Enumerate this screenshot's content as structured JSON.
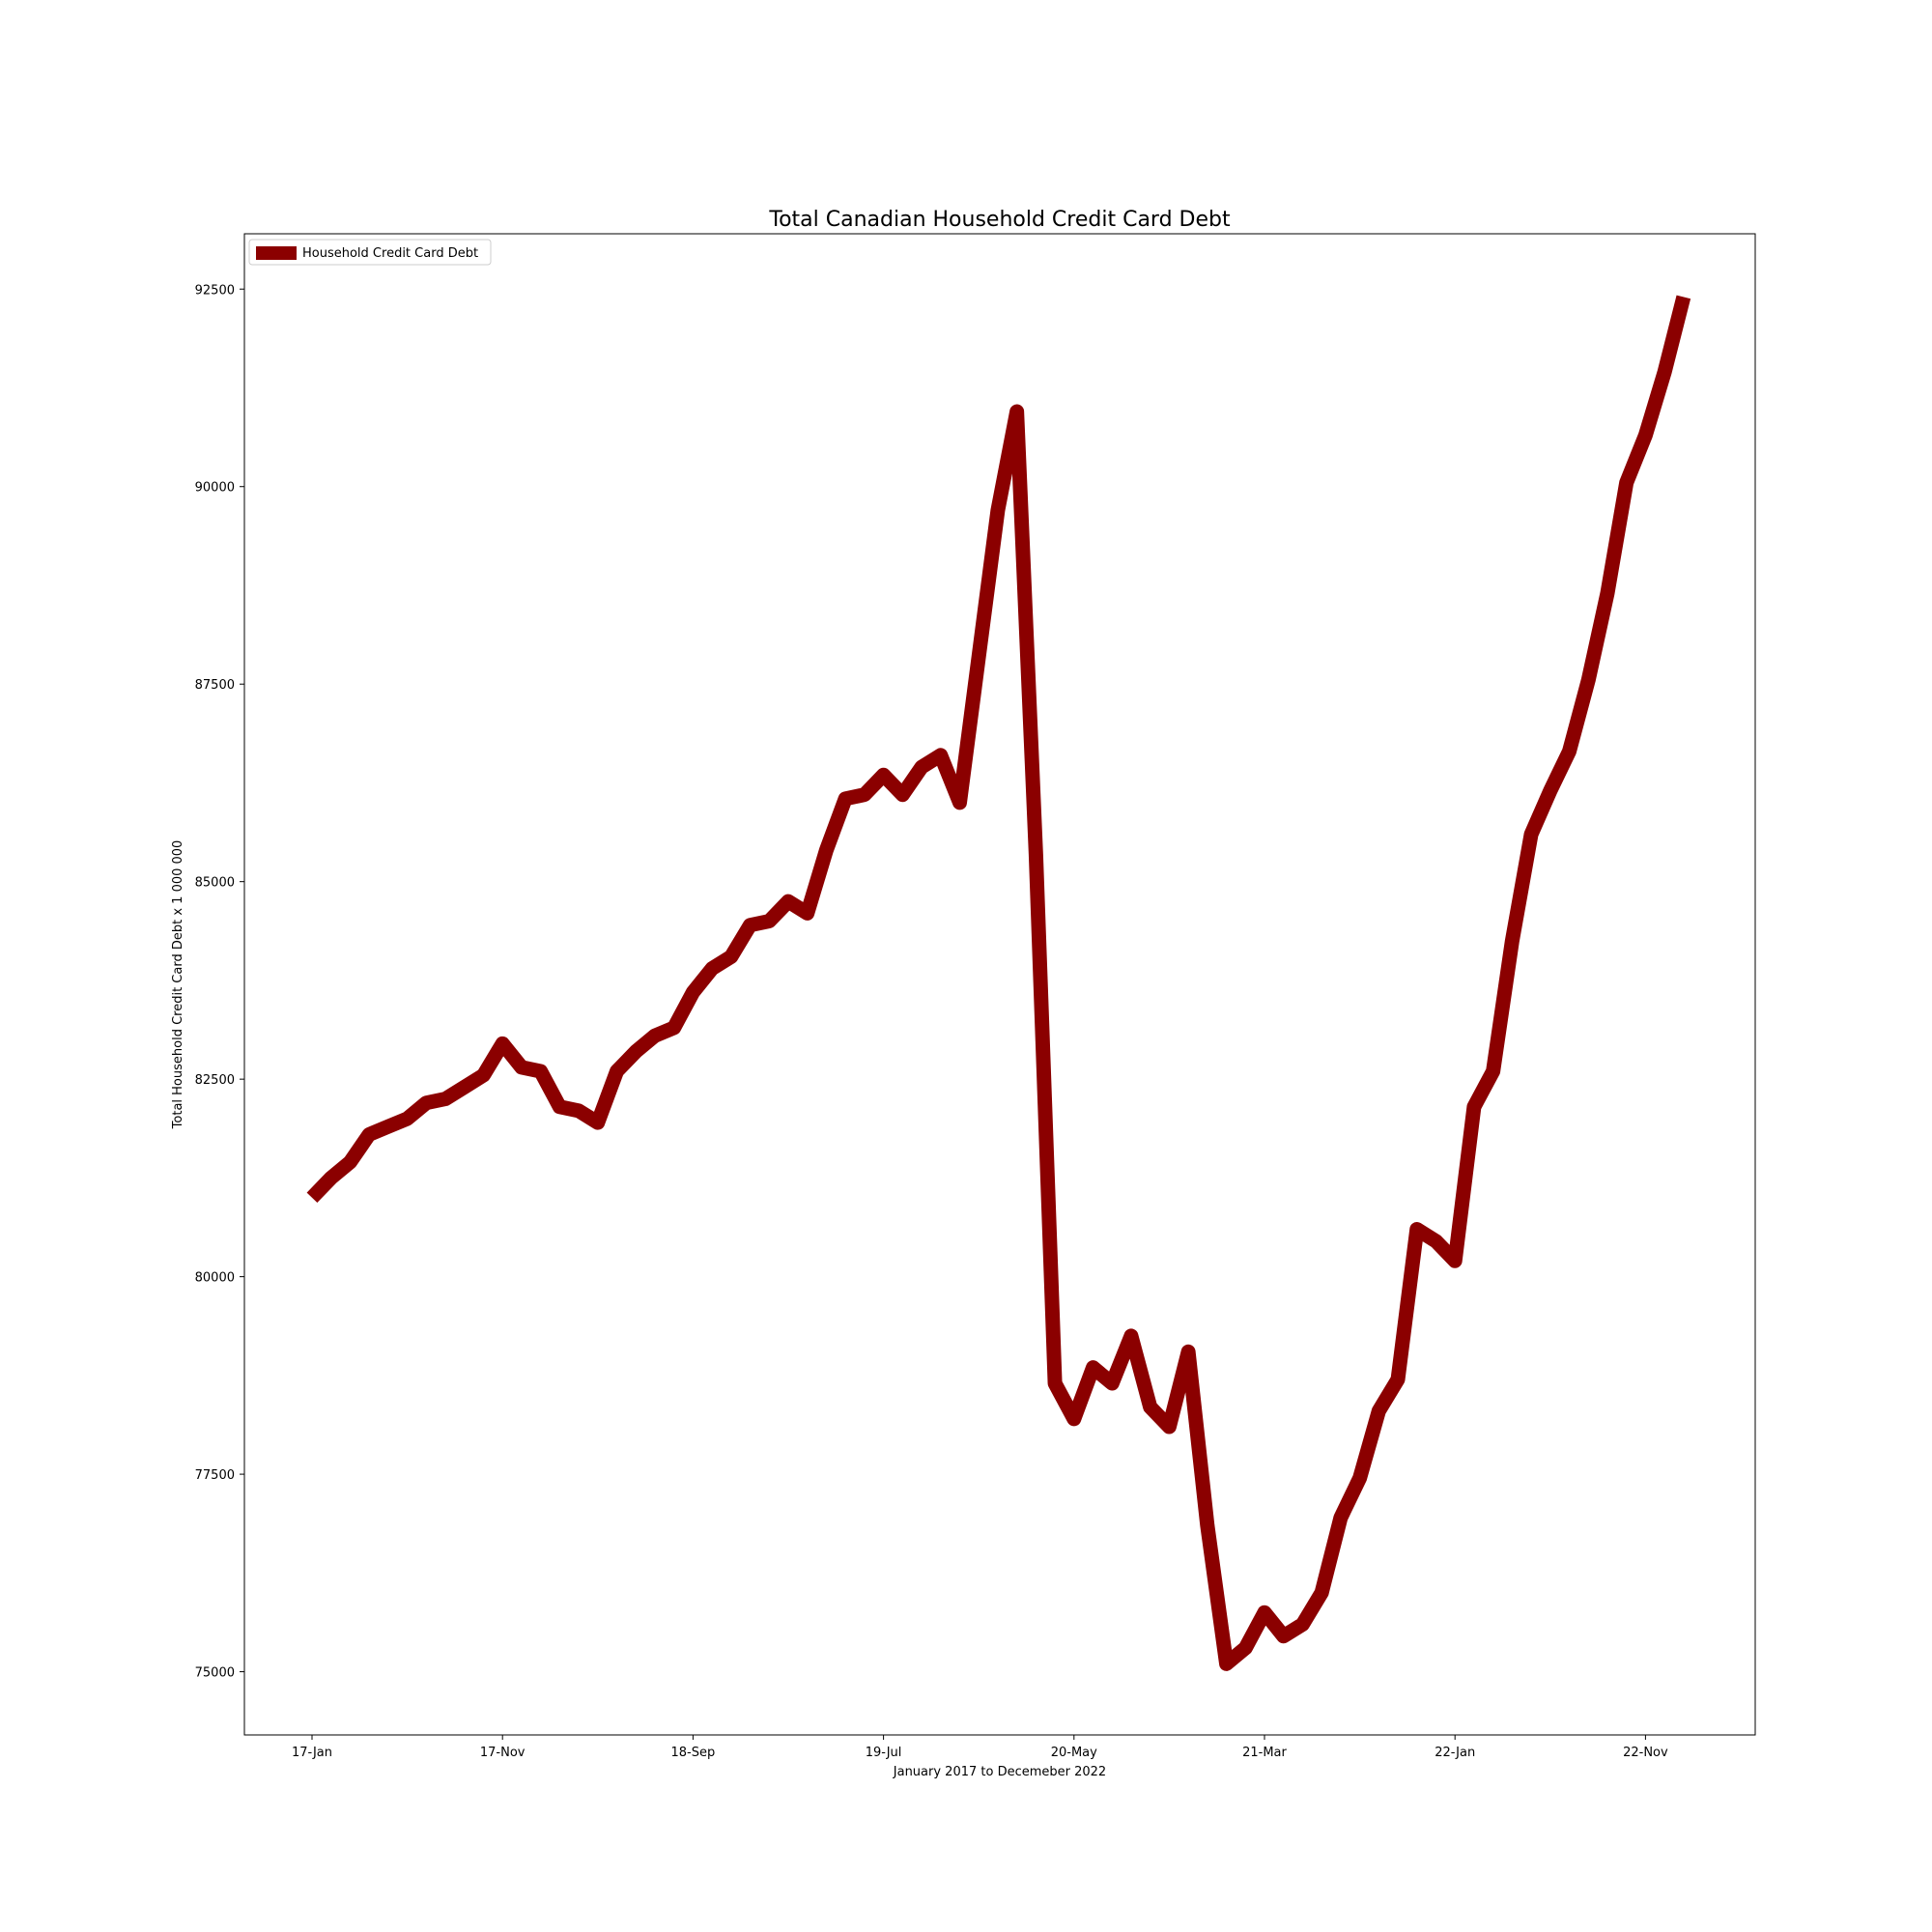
{
  "chart_data": {
    "type": "line",
    "title": "Total Canadian Household Credit Card Debt",
    "xlabel": "January 2017 to Decemeber 2022",
    "ylabel": "Total Household Credit Card Debt x 1 000 000",
    "x_tick_labels": [
      "17-Jan",
      "17-Nov",
      "18-Sep",
      "19-Jul",
      "20-May",
      "21-Mar",
      "22-Jan",
      "22-Nov"
    ],
    "y_ticks": [
      75000,
      77500,
      80000,
      82500,
      85000,
      87500,
      90000,
      92500
    ],
    "ylim": [
      74200,
      93200
    ],
    "grid": false,
    "legend_position": "top-left",
    "colors": {
      "line": "#8b0000"
    },
    "series": [
      {
        "name": "Household Credit Card Debt",
        "color": "#8b0000",
        "values": [
          81000,
          81250,
          81450,
          81800,
          81900,
          82000,
          82200,
          82250,
          82400,
          82550,
          82950,
          82650,
          82600,
          82150,
          82100,
          81950,
          82600,
          82850,
          83050,
          83150,
          83600,
          83900,
          84050,
          84450,
          84500,
          84750,
          84600,
          85400,
          86050,
          86100,
          86350,
          86100,
          86450,
          86600,
          86000,
          87850,
          89700,
          90950,
          85350,
          78650,
          78200,
          78850,
          78650,
          79250,
          78350,
          78100,
          79050,
          76850,
          75100,
          75300,
          75750,
          75450,
          75600,
          76000,
          76950,
          77450,
          78300,
          78700,
          80600,
          80450,
          80200,
          82150,
          82600,
          84250,
          85600,
          86150,
          86650,
          87550,
          88650,
          90050,
          90650,
          91450,
          92400
        ]
      }
    ]
  }
}
